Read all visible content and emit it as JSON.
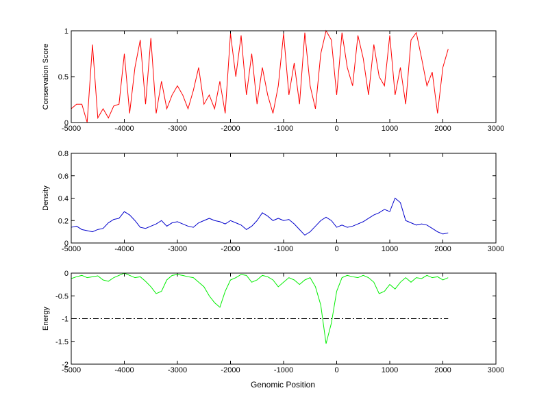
{
  "chart_data": [
    {
      "type": "line",
      "ylabel": "Conservation Score",
      "color": "#ff0000",
      "x": [
        -5000,
        -4900,
        -4800,
        -4700,
        -4600,
        -4500,
        -4400,
        -4300,
        -4200,
        -4100,
        -4000,
        -3900,
        -3800,
        -3700,
        -3600,
        -3500,
        -3400,
        -3300,
        -3200,
        -3100,
        -3000,
        -2900,
        -2800,
        -2700,
        -2600,
        -2500,
        -2400,
        -2300,
        -2200,
        -2100,
        -2000,
        -1900,
        -1800,
        -1700,
        -1600,
        -1500,
        -1400,
        -1300,
        -1200,
        -1100,
        -1000,
        -900,
        -800,
        -700,
        -600,
        -500,
        -400,
        -300,
        -200,
        -100,
        0,
        100,
        200,
        300,
        400,
        500,
        600,
        700,
        800,
        900,
        1000,
        1100,
        1200,
        1300,
        1400,
        1500,
        1600,
        1700,
        1800,
        1900,
        2000,
        2100
      ],
      "values": [
        0.15,
        0.2,
        0.2,
        0.0,
        0.85,
        0.05,
        0.15,
        0.05,
        0.18,
        0.2,
        0.75,
        0.1,
        0.6,
        0.9,
        0.2,
        0.92,
        0.1,
        0.45,
        0.15,
        0.3,
        0.4,
        0.3,
        0.15,
        0.35,
        0.6,
        0.2,
        0.3,
        0.15,
        0.45,
        0.1,
        0.97,
        0.5,
        0.95,
        0.3,
        0.75,
        0.2,
        0.6,
        0.3,
        0.1,
        0.4,
        0.97,
        0.3,
        0.65,
        0.2,
        0.98,
        0.4,
        0.15,
        0.75,
        1.0,
        0.9,
        0.3,
        0.98,
        0.6,
        0.4,
        0.95,
        0.7,
        0.3,
        0.85,
        0.5,
        0.4,
        0.95,
        0.3,
        0.6,
        0.2,
        0.9,
        0.98,
        0.7,
        0.4,
        0.55,
        0.1,
        0.6,
        0.8
      ],
      "xlim": [
        -5000,
        3000
      ],
      "xticks": [
        -5000,
        -4000,
        -3000,
        -2000,
        -1000,
        0,
        1000,
        2000,
        3000
      ],
      "ylim": [
        0,
        1
      ],
      "yticks": [
        0,
        0.5,
        1
      ]
    },
    {
      "type": "line",
      "ylabel": "Density",
      "color": "#0000cc",
      "x": [
        -5000,
        -4900,
        -4800,
        -4700,
        -4600,
        -4500,
        -4400,
        -4300,
        -4200,
        -4100,
        -4000,
        -3900,
        -3800,
        -3700,
        -3600,
        -3500,
        -3400,
        -3300,
        -3200,
        -3100,
        -3000,
        -2900,
        -2800,
        -2700,
        -2600,
        -2500,
        -2400,
        -2300,
        -2200,
        -2100,
        -2000,
        -1900,
        -1800,
        -1700,
        -1600,
        -1500,
        -1400,
        -1300,
        -1200,
        -1100,
        -1000,
        -900,
        -800,
        -700,
        -600,
        -500,
        -400,
        -300,
        -200,
        -100,
        0,
        100,
        200,
        300,
        400,
        500,
        600,
        700,
        800,
        900,
        1000,
        1100,
        1200,
        1300,
        1400,
        1500,
        1600,
        1700,
        1800,
        1900,
        2000,
        2100
      ],
      "values": [
        0.14,
        0.15,
        0.12,
        0.11,
        0.1,
        0.12,
        0.13,
        0.18,
        0.21,
        0.22,
        0.28,
        0.25,
        0.2,
        0.14,
        0.13,
        0.15,
        0.17,
        0.2,
        0.15,
        0.18,
        0.19,
        0.17,
        0.15,
        0.14,
        0.18,
        0.2,
        0.22,
        0.2,
        0.19,
        0.17,
        0.2,
        0.18,
        0.16,
        0.12,
        0.15,
        0.2,
        0.27,
        0.24,
        0.2,
        0.22,
        0.2,
        0.21,
        0.17,
        0.12,
        0.07,
        0.1,
        0.15,
        0.2,
        0.23,
        0.2,
        0.14,
        0.16,
        0.14,
        0.15,
        0.17,
        0.19,
        0.22,
        0.25,
        0.27,
        0.3,
        0.28,
        0.4,
        0.36,
        0.2,
        0.18,
        0.16,
        0.17,
        0.16,
        0.13,
        0.1,
        0.08,
        0.09
      ],
      "xlim": [
        -5000,
        3000
      ],
      "xticks": [
        -5000,
        -4000,
        -3000,
        -2000,
        -1000,
        0,
        1000,
        2000,
        3000
      ],
      "ylim": [
        0,
        0.8
      ],
      "yticks": [
        0,
        0.2,
        0.4,
        0.6,
        0.8
      ]
    },
    {
      "type": "line",
      "ylabel": "Energy",
      "xlabel": "Genomic Position",
      "color": "#00ee00",
      "x": [
        -5000,
        -4900,
        -4800,
        -4700,
        -4600,
        -4500,
        -4400,
        -4300,
        -4200,
        -4100,
        -4000,
        -3900,
        -3800,
        -3700,
        -3600,
        -3500,
        -3400,
        -3300,
        -3200,
        -3100,
        -3000,
        -2900,
        -2800,
        -2700,
        -2600,
        -2500,
        -2400,
        -2300,
        -2200,
        -2100,
        -2000,
        -1900,
        -1800,
        -1700,
        -1600,
        -1500,
        -1400,
        -1300,
        -1200,
        -1100,
        -1000,
        -900,
        -800,
        -700,
        -600,
        -500,
        -400,
        -300,
        -200,
        -100,
        0,
        100,
        200,
        300,
        400,
        500,
        600,
        700,
        800,
        900,
        1000,
        1100,
        1200,
        1300,
        1400,
        1500,
        1600,
        1700,
        1800,
        1900,
        2000,
        2100
      ],
      "values": [
        -0.12,
        -0.08,
        -0.05,
        -0.1,
        -0.08,
        -0.06,
        -0.15,
        -0.18,
        -0.1,
        -0.05,
        0,
        -0.05,
        -0.1,
        -0.08,
        -0.18,
        -0.3,
        -0.45,
        -0.4,
        -0.15,
        -0.05,
        -0.03,
        -0.05,
        -0.08,
        -0.1,
        -0.2,
        -0.3,
        -0.5,
        -0.65,
        -0.75,
        -0.4,
        -0.15,
        -0.1,
        -0.03,
        -0.05,
        -0.2,
        -0.15,
        -0.05,
        -0.08,
        -0.15,
        -0.3,
        -0.2,
        -0.1,
        -0.15,
        -0.25,
        -0.15,
        -0.1,
        -0.3,
        -0.7,
        -1.55,
        -1.1,
        -0.4,
        -0.1,
        -0.05,
        -0.08,
        -0.1,
        -0.05,
        -0.1,
        -0.2,
        -0.45,
        -0.4,
        -0.25,
        -0.35,
        -0.2,
        -0.1,
        -0.2,
        -0.1,
        -0.12,
        -0.05,
        -0.1,
        -0.08,
        -0.15,
        -0.1
      ],
      "reference_line": {
        "y": -1,
        "x": [
          -5000,
          2100
        ]
      },
      "xlim": [
        -5000,
        3000
      ],
      "xticks": [
        -5000,
        -4000,
        -3000,
        -2000,
        -1000,
        0,
        1000,
        2000,
        3000
      ],
      "ylim": [
        -2,
        0
      ],
      "yticks": [
        -2,
        -1.5,
        -1,
        -0.5,
        0
      ]
    }
  ]
}
